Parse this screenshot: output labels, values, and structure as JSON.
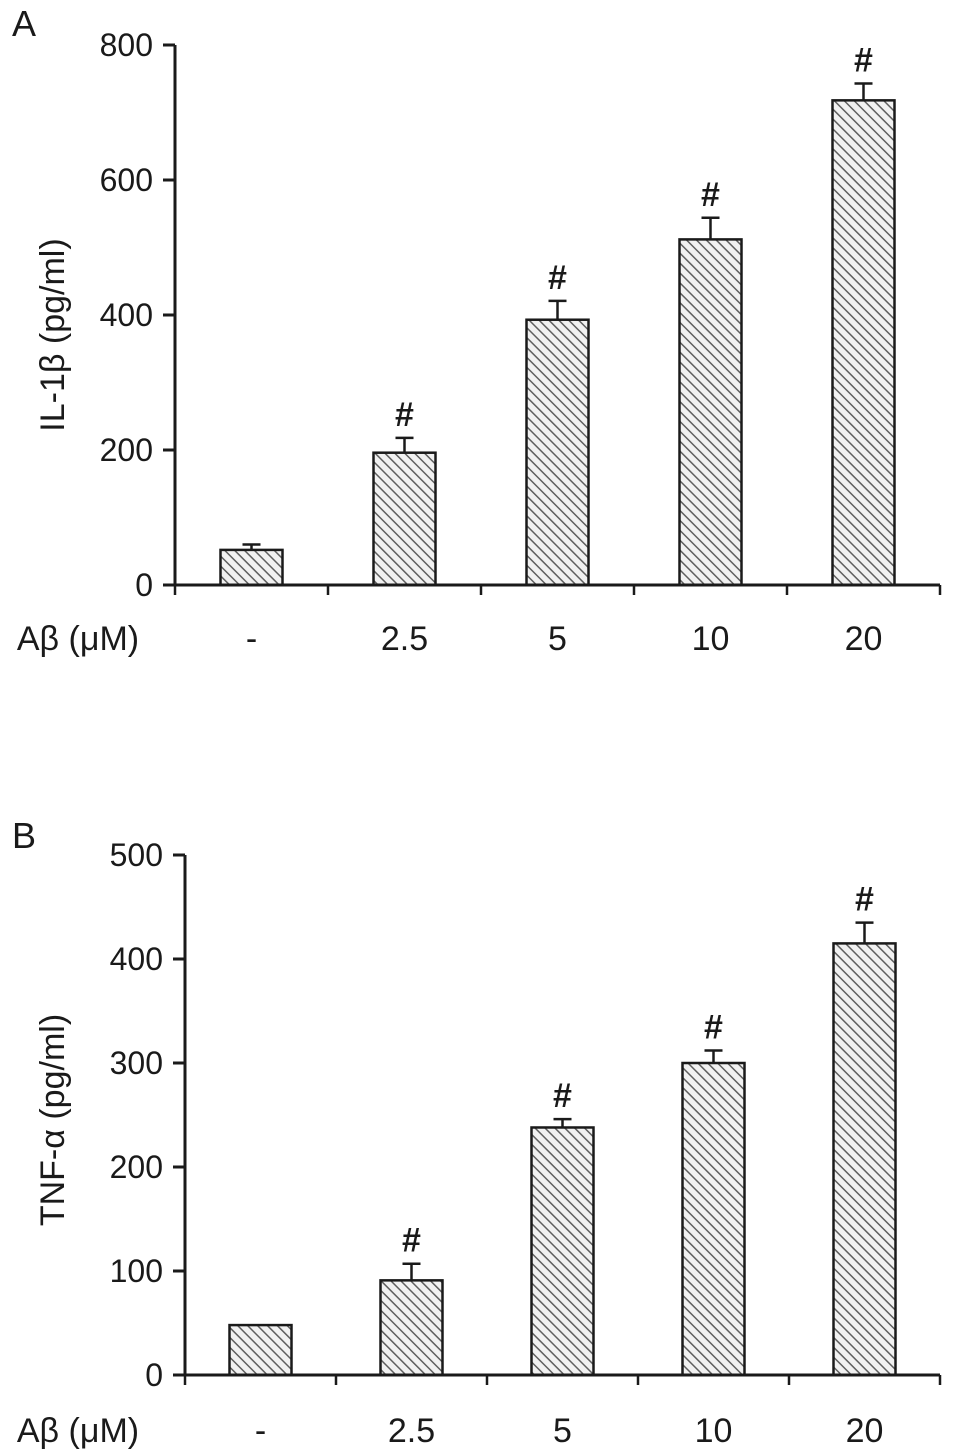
{
  "figure": {
    "description_visible_text_only": "",
    "significance_symbol": "#"
  },
  "chart_data": [
    {
      "type": "bar",
      "panel_label": "A",
      "title": "",
      "xlabel": "Aβ (μM)",
      "ylabel": "IL-1β (pg/ml)",
      "categories": [
        "-",
        "2.5",
        "5",
        "10",
        "20"
      ],
      "values": [
        52,
        196,
        393,
        512,
        718
      ],
      "errors": [
        8,
        22,
        28,
        32,
        25
      ],
      "annotations": [
        "",
        "#",
        "#",
        "#",
        "#"
      ],
      "ylim": [
        0,
        800
      ],
      "yticks": [
        0,
        200,
        400,
        600,
        800
      ],
      "grid": false,
      "legend": "none",
      "bar_style": "diagonal-hatch",
      "colors": {
        "bar_fill": "#f1f1f1",
        "hatch": "#5f5f5f",
        "outline": "#1a1a1a"
      }
    },
    {
      "type": "bar",
      "panel_label": "B",
      "title": "",
      "xlabel": "Aβ (μM)",
      "ylabel": "TNF-α (pg/ml)",
      "categories": [
        "-",
        "2.5",
        "5",
        "10",
        "20"
      ],
      "values": [
        48,
        91,
        238,
        300,
        415
      ],
      "errors": [
        0,
        16,
        8,
        12,
        20
      ],
      "annotations": [
        "",
        "#",
        "#",
        "#",
        "#"
      ],
      "ylim": [
        0,
        500
      ],
      "yticks": [
        0,
        100,
        200,
        300,
        400,
        500
      ],
      "grid": false,
      "legend": "none",
      "bar_style": "diagonal-hatch",
      "colors": {
        "bar_fill": "#f1f1f1",
        "hatch": "#5f5f5f",
        "outline": "#1a1a1a"
      }
    }
  ]
}
